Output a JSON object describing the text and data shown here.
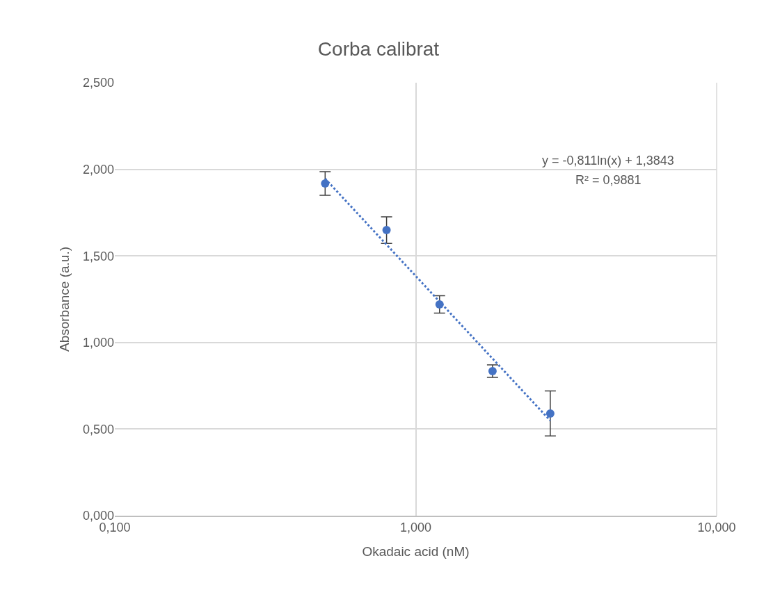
{
  "chart_data": {
    "type": "scatter",
    "title": "Corba calibrat",
    "xlabel": "Okadaic acid (nM)",
    "ylabel": "Absorbance (a.u.)",
    "log": "x",
    "xlim": [
      0.1,
      10
    ],
    "xticks": [
      {
        "value": 0.1,
        "label": "0,100"
      },
      {
        "value": 1,
        "label": "1,000"
      },
      {
        "value": 10,
        "label": "10,000"
      }
    ],
    "ylim": [
      0,
      2.5
    ],
    "yticks": [
      {
        "value": 0,
        "label": "0,000"
      },
      {
        "value": 0.5,
        "label": "0,500"
      },
      {
        "value": 1,
        "label": "1,000"
      },
      {
        "value": 1.5,
        "label": "1,500"
      },
      {
        "value": 2,
        "label": "2,000"
      },
      {
        "value": 2.5,
        "label": "2,500"
      }
    ],
    "grid": true,
    "series": [
      {
        "color": "#4472c4",
        "marker": "circle",
        "x": [
          0.5,
          0.8,
          1.2,
          1.8,
          2.8
        ],
        "values": [
          1.918,
          1.649,
          1.22,
          0.835,
          0.59
        ],
        "errors": [
          0.068,
          0.077,
          0.05,
          0.036,
          0.13
        ]
      },
      {
        "type": "line",
        "color": "#4472c4",
        "line_style": "dotted",
        "x": [
          0.5,
          2.8
        ],
        "values": [
          1.946,
          0.549
        ]
      }
    ],
    "annotations": [
      "y = -0,811ln(x) + 1,3843",
      "R² = 0,9881"
    ]
  }
}
